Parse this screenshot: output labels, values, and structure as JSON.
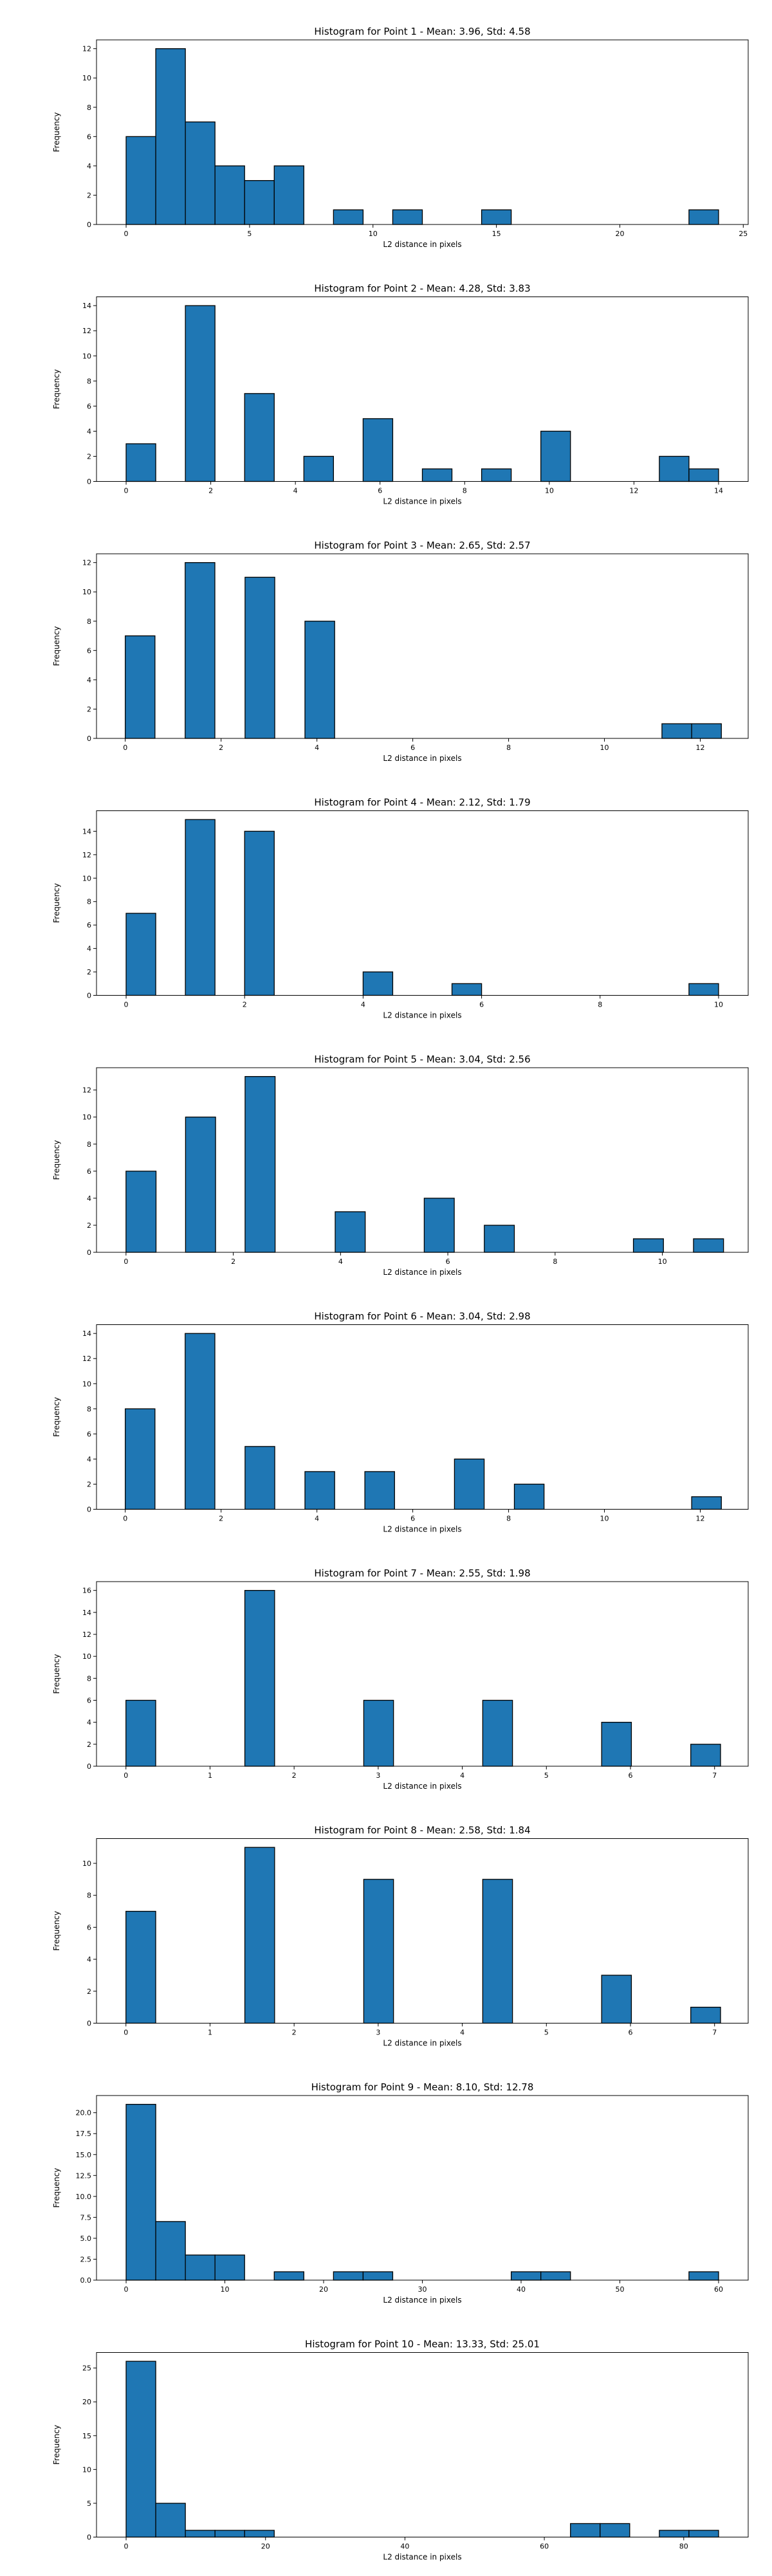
{
  "colors": {
    "bar_fill": "#1f77b4",
    "bar_edge": "#000000",
    "axis": "#000000",
    "background": "#ffffff"
  },
  "chart_data": [
    {
      "type": "bar",
      "title": "Histogram for Point 1 - Mean: 3.96, Std: 4.58",
      "xlabel": "L2 distance in pixels",
      "ylabel": "Frequency",
      "grid": false,
      "xlim": [
        -1.2,
        25.2
      ],
      "ylim": [
        0,
        12.6
      ],
      "xticks": [
        0,
        5,
        10,
        15,
        20,
        25
      ],
      "xtick_labels": [
        "0",
        "5",
        "10",
        "15",
        "20",
        "25"
      ],
      "yticks": [
        0,
        2,
        4,
        6,
        8,
        10,
        12
      ],
      "ytick_labels": [
        "0",
        "2",
        "4",
        "6",
        "8",
        "10",
        "12"
      ],
      "bins": [
        [
          0,
          1.2,
          6
        ],
        [
          1.2,
          2.4,
          12
        ],
        [
          2.4,
          3.6,
          7
        ],
        [
          3.6,
          4.8,
          4
        ],
        [
          4.8,
          6.0,
          3
        ],
        [
          6.0,
          7.2,
          4
        ],
        [
          8.4,
          9.6,
          1
        ],
        [
          10.8,
          12.0,
          1
        ],
        [
          14.4,
          15.6,
          1
        ],
        [
          22.8,
          24.0,
          1
        ]
      ]
    },
    {
      "type": "bar",
      "title": "Histogram for Point 2 - Mean: 4.28, Std: 3.83",
      "xlabel": "L2 distance in pixels",
      "ylabel": "Frequency",
      "grid": false,
      "xlim": [
        -0.7,
        14.7
      ],
      "ylim": [
        0,
        14.7
      ],
      "xticks": [
        0,
        2,
        4,
        6,
        8,
        10,
        12,
        14
      ],
      "xtick_labels": [
        "0",
        "2",
        "4",
        "6",
        "8",
        "10",
        "12",
        "14"
      ],
      "yticks": [
        0,
        2,
        4,
        6,
        8,
        10,
        12,
        14
      ],
      "ytick_labels": [
        "0",
        "2",
        "4",
        "6",
        "8",
        "10",
        "12",
        "14"
      ],
      "bins": [
        [
          0,
          0.7,
          3
        ],
        [
          1.4,
          2.1,
          14
        ],
        [
          2.8,
          3.5,
          7
        ],
        [
          4.2,
          4.9,
          2
        ],
        [
          5.6,
          6.3,
          5
        ],
        [
          7.0,
          7.7,
          1
        ],
        [
          8.4,
          9.1,
          1
        ],
        [
          9.8,
          10.5,
          4
        ],
        [
          12.6,
          13.3,
          2
        ],
        [
          13.3,
          14.0,
          1
        ]
      ]
    },
    {
      "type": "bar",
      "title": "Histogram for Point 3 - Mean: 2.65, Std: 2.57",
      "xlabel": "L2 distance in pixels",
      "ylabel": "Frequency",
      "grid": false,
      "xlim": [
        -0.6,
        13.0
      ],
      "ylim": [
        0,
        12.6
      ],
      "xticks": [
        0,
        2,
        4,
        6,
        8,
        10,
        12
      ],
      "xtick_labels": [
        "0",
        "2",
        "4",
        "6",
        "8",
        "10",
        "12"
      ],
      "yticks": [
        0,
        2,
        4,
        6,
        8,
        10,
        12
      ],
      "ytick_labels": [
        "0",
        "2",
        "4",
        "6",
        "8",
        "10",
        "12"
      ],
      "bins": [
        [
          0,
          0.62,
          7
        ],
        [
          1.25,
          1.87,
          12
        ],
        [
          2.5,
          3.12,
          11
        ],
        [
          3.75,
          4.37,
          8
        ],
        [
          11.2,
          11.82,
          1
        ],
        [
          11.82,
          12.44,
          1
        ]
      ]
    },
    {
      "type": "bar",
      "title": "Histogram for Point 4 - Mean: 2.12, Std: 1.79",
      "xlabel": "L2 distance in pixels",
      "ylabel": "Frequency",
      "grid": false,
      "xlim": [
        -0.5,
        10.5
      ],
      "ylim": [
        0,
        15.75
      ],
      "xticks": [
        0,
        2,
        4,
        6,
        8,
        10
      ],
      "xtick_labels": [
        "0",
        "2",
        "4",
        "6",
        "8",
        "10"
      ],
      "yticks": [
        0,
        2,
        4,
        6,
        8,
        10,
        12,
        14
      ],
      "ytick_labels": [
        "0",
        "2",
        "4",
        "6",
        "8",
        "10",
        "12",
        "14"
      ],
      "bins": [
        [
          0,
          0.5,
          7
        ],
        [
          1.0,
          1.5,
          15
        ],
        [
          2.0,
          2.5,
          14
        ],
        [
          4.0,
          4.5,
          2
        ],
        [
          5.5,
          6.0,
          1
        ],
        [
          9.5,
          10.0,
          1
        ]
      ]
    },
    {
      "type": "bar",
      "title": "Histogram for Point 5 - Mean: 3.04, Std: 2.56",
      "xlabel": "L2 distance in pixels",
      "ylabel": "Frequency",
      "grid": false,
      "xlim": [
        -0.55,
        11.6
      ],
      "ylim": [
        0,
        13.65
      ],
      "xticks": [
        0,
        2,
        4,
        6,
        8,
        10
      ],
      "xtick_labels": [
        "0",
        "2",
        "4",
        "6",
        "8",
        "10"
      ],
      "yticks": [
        0,
        2,
        4,
        6,
        8,
        10,
        12
      ],
      "ytick_labels": [
        "0",
        "2",
        "4",
        "6",
        "8",
        "10",
        "12"
      ],
      "bins": [
        [
          0,
          0.56,
          6
        ],
        [
          1.11,
          1.67,
          10
        ],
        [
          2.22,
          2.78,
          13
        ],
        [
          3.9,
          4.46,
          3
        ],
        [
          5.56,
          6.12,
          4
        ],
        [
          6.68,
          7.24,
          2
        ],
        [
          9.46,
          10.02,
          1
        ],
        [
          10.58,
          11.14,
          1
        ]
      ]
    },
    {
      "type": "bar",
      "title": "Histogram for Point 6 - Mean: 3.04, Std: 2.98",
      "xlabel": "L2 distance in pixels",
      "ylabel": "Frequency",
      "grid": false,
      "xlim": [
        -0.6,
        13.0
      ],
      "ylim": [
        0,
        14.7
      ],
      "xticks": [
        0,
        2,
        4,
        6,
        8,
        10,
        12
      ],
      "xtick_labels": [
        "0",
        "2",
        "4",
        "6",
        "8",
        "10",
        "12"
      ],
      "yticks": [
        0,
        2,
        4,
        6,
        8,
        10,
        12,
        14
      ],
      "ytick_labels": [
        "0",
        "2",
        "4",
        "6",
        "8",
        "10",
        "12",
        "14"
      ],
      "bins": [
        [
          0,
          0.62,
          8
        ],
        [
          1.25,
          1.87,
          14
        ],
        [
          2.5,
          3.12,
          5
        ],
        [
          3.75,
          4.37,
          3
        ],
        [
          5.0,
          5.62,
          3
        ],
        [
          6.87,
          7.49,
          4
        ],
        [
          8.12,
          8.74,
          2
        ],
        [
          11.82,
          12.44,
          1
        ]
      ]
    },
    {
      "type": "bar",
      "title": "Histogram for Point 7 - Mean: 2.55, Std: 1.98",
      "xlabel": "L2 distance in pixels",
      "ylabel": "Frequency",
      "grid": false,
      "xlim": [
        -0.35,
        7.4
      ],
      "ylim": [
        0,
        16.8
      ],
      "xticks": [
        0,
        1,
        2,
        3,
        4,
        5,
        6,
        7
      ],
      "xtick_labels": [
        "0",
        "1",
        "2",
        "3",
        "4",
        "5",
        "6",
        "7"
      ],
      "yticks": [
        0,
        2,
        4,
        6,
        8,
        10,
        12,
        14,
        16
      ],
      "ytick_labels": [
        "0",
        "2",
        "4",
        "6",
        "8",
        "10",
        "12",
        "14",
        "16"
      ],
      "bins": [
        [
          0,
          0.354,
          6
        ],
        [
          1.414,
          1.768,
          16
        ],
        [
          2.828,
          3.182,
          6
        ],
        [
          4.243,
          4.597,
          6
        ],
        [
          5.657,
          6.011,
          4
        ],
        [
          6.717,
          7.071,
          2
        ]
      ]
    },
    {
      "type": "bar",
      "title": "Histogram for Point 8 - Mean: 2.58, Std: 1.84",
      "xlabel": "L2 distance in pixels",
      "ylabel": "Frequency",
      "grid": false,
      "xlim": [
        -0.35,
        7.4
      ],
      "ylim": [
        0,
        11.55
      ],
      "xticks": [
        0,
        1,
        2,
        3,
        4,
        5,
        6,
        7
      ],
      "xtick_labels": [
        "0",
        "1",
        "2",
        "3",
        "4",
        "5",
        "6",
        "7"
      ],
      "yticks": [
        0,
        2,
        4,
        6,
        8,
        10
      ],
      "ytick_labels": [
        "0",
        "2",
        "4",
        "6",
        "8",
        "10"
      ],
      "bins": [
        [
          0,
          0.354,
          7
        ],
        [
          1.414,
          1.768,
          11
        ],
        [
          2.828,
          3.182,
          9
        ],
        [
          4.243,
          4.597,
          9
        ],
        [
          5.657,
          6.011,
          3
        ],
        [
          6.717,
          7.071,
          1
        ]
      ]
    },
    {
      "type": "bar",
      "title": "Histogram for Point 9 - Mean: 8.10, Std: 12.78",
      "xlabel": "L2 distance in pixels",
      "ylabel": "Frequency",
      "grid": false,
      "xlim": [
        -3.0,
        63.0
      ],
      "ylim": [
        0,
        22.05
      ],
      "xticks": [
        0,
        10,
        20,
        30,
        40,
        50,
        60
      ],
      "xtick_labels": [
        "0",
        "10",
        "20",
        "30",
        "40",
        "50",
        "60"
      ],
      "yticks": [
        0,
        2.5,
        5,
        7.5,
        10,
        12.5,
        15,
        17.5,
        20
      ],
      "ytick_labels": [
        "0.0",
        "2.5",
        "5.0",
        "7.5",
        "10.0",
        "12.5",
        "15.0",
        "17.5",
        "20.0"
      ],
      "bins": [
        [
          0,
          3,
          21
        ],
        [
          3,
          6,
          7
        ],
        [
          6,
          9,
          3
        ],
        [
          9,
          12,
          3
        ],
        [
          15,
          18,
          1
        ],
        [
          21,
          24,
          1
        ],
        [
          24,
          27,
          1
        ],
        [
          39,
          42,
          1
        ],
        [
          42,
          45,
          1
        ],
        [
          57,
          60,
          1
        ]
      ]
    },
    {
      "type": "bar",
      "title": "Histogram for Point 10 - Mean: 13.33, Std: 25.01",
      "xlabel": "L2 distance in pixels",
      "ylabel": "Frequency",
      "grid": false,
      "xlim": [
        -4.25,
        89.25
      ],
      "ylim": [
        0,
        27.3
      ],
      "xticks": [
        0,
        20,
        40,
        60,
        80
      ],
      "xtick_labels": [
        "0",
        "20",
        "40",
        "60",
        "80"
      ],
      "yticks": [
        0,
        5,
        10,
        15,
        20,
        25
      ],
      "ytick_labels": [
        "0",
        "5",
        "10",
        "15",
        "20",
        "25"
      ],
      "bins": [
        [
          0,
          4.25,
          26
        ],
        [
          4.25,
          8.5,
          5
        ],
        [
          8.5,
          12.75,
          1
        ],
        [
          12.75,
          17.0,
          1
        ],
        [
          17.0,
          21.25,
          1
        ],
        [
          63.75,
          68.0,
          2
        ],
        [
          68.0,
          72.25,
          2
        ],
        [
          76.5,
          80.75,
          1
        ],
        [
          80.75,
          85.0,
          1
        ]
      ]
    }
  ]
}
